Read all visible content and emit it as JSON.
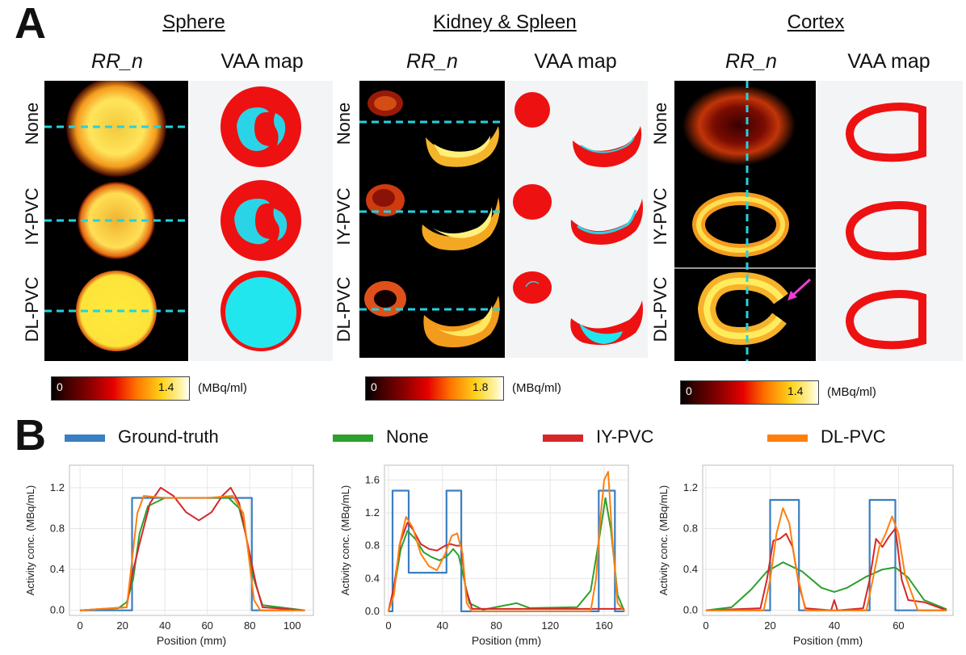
{
  "panels": {
    "a_label": "A",
    "b_label": "B"
  },
  "columns": [
    {
      "title": "Sphere",
      "sub_left": "RR_n",
      "sub_right": "VAA map"
    },
    {
      "title": "Kidney & Spleen",
      "sub_left": "RR_n",
      "sub_right": "VAA map"
    },
    {
      "title": "Cortex",
      "sub_left": "RR_n",
      "sub_right": "VAA map"
    }
  ],
  "rows": [
    "None",
    "IY-PVC",
    "DL-PVC"
  ],
  "colorbars": [
    {
      "min": "0",
      "max": "1.4",
      "unit": "(MBq/ml)"
    },
    {
      "min": "0",
      "max": "1.8",
      "unit": "(MBq/ml)"
    },
    {
      "min": "0",
      "max": "1.4",
      "unit": "(MBq/ml)"
    }
  ],
  "legend": [
    {
      "name": "Ground-truth",
      "color": "#3a7fc1"
    },
    {
      "name": "None",
      "color": "#2ca02c"
    },
    {
      "name": "IY-PVC",
      "color": "#d62728"
    },
    {
      "name": "DL-PVC",
      "color": "#ff7f0e"
    }
  ],
  "chart_data": [
    {
      "type": "line",
      "xlabel": "Position (mm)",
      "ylabel": "Activity conc. (MBq/mL)",
      "xlim": [
        -5,
        110
      ],
      "ylim": [
        -0.05,
        1.42
      ],
      "xticks": [
        0,
        20,
        40,
        60,
        80,
        100
      ],
      "yticks": [
        0.0,
        0.4,
        0.8,
        1.2
      ],
      "ytick_labels": [
        "0.0",
        "0.4",
        "0.8",
        "1.2"
      ],
      "grid": true,
      "series": [
        {
          "name": "Ground-truth",
          "x": [
            0,
            24.5,
            24.5,
            81,
            81,
            106
          ],
          "y": [
            0,
            0,
            1.1,
            1.1,
            0,
            0
          ]
        },
        {
          "name": "None",
          "x": [
            0,
            18,
            22,
            25,
            28,
            32,
            40,
            55,
            70,
            75,
            78,
            82,
            86,
            106
          ],
          "y": [
            0,
            0.02,
            0.08,
            0.3,
            0.75,
            1.02,
            1.1,
            1.1,
            1.1,
            1.0,
            0.75,
            0.3,
            0.05,
            0
          ]
        },
        {
          "name": "IY-PVC",
          "x": [
            0,
            22,
            24,
            28,
            33,
            38,
            44,
            50,
            56,
            62,
            67,
            71,
            75,
            79,
            83,
            86,
            106
          ],
          "y": [
            0,
            0.03,
            0.3,
            0.65,
            1.05,
            1.2,
            1.12,
            0.96,
            0.88,
            0.96,
            1.12,
            1.2,
            1.05,
            0.65,
            0.25,
            0.03,
            0
          ]
        },
        {
          "name": "DL-PVC",
          "x": [
            0,
            22,
            24,
            27,
            30,
            40,
            60,
            72,
            77,
            80,
            82,
            85,
            106
          ],
          "y": [
            0,
            0.03,
            0.4,
            0.95,
            1.12,
            1.1,
            1.1,
            1.12,
            0.95,
            0.45,
            0.1,
            0,
            0
          ]
        }
      ]
    },
    {
      "type": "line",
      "xlabel": "Position (mm)",
      "ylabel": "Activity conc. (MBq/mL)",
      "xlim": [
        -3,
        178
      ],
      "ylim": [
        -0.05,
        1.78
      ],
      "xticks": [
        0,
        40,
        80,
        120,
        160
      ],
      "yticks": [
        0.0,
        0.4,
        0.8,
        1.2,
        1.6
      ],
      "ytick_labels": [
        "0.0",
        "0.4",
        "0.8",
        "1.2",
        "1.6"
      ],
      "grid": true,
      "series": [
        {
          "name": "Ground-truth",
          "x": [
            0,
            3,
            3,
            15,
            15,
            43,
            43,
            54,
            54,
            156,
            156,
            168,
            168,
            175
          ],
          "y": [
            0,
            0,
            1.47,
            1.47,
            0.47,
            0.47,
            1.47,
            1.47,
            0,
            0,
            1.47,
            1.47,
            0,
            0
          ]
        },
        {
          "name": "None",
          "x": [
            0,
            4,
            9,
            14,
            20,
            26,
            32,
            38,
            44,
            48,
            52,
            56,
            60,
            70,
            95,
            105,
            140,
            150,
            156,
            161,
            165,
            170,
            175
          ],
          "y": [
            0,
            0.25,
            0.75,
            0.98,
            0.88,
            0.72,
            0.66,
            0.62,
            0.68,
            0.76,
            0.68,
            0.4,
            0.1,
            0.02,
            0.1,
            0.04,
            0.05,
            0.25,
            0.85,
            1.38,
            1.0,
            0.2,
            0
          ]
        },
        {
          "name": "IY-PVC",
          "x": [
            0,
            4,
            9,
            14,
            18,
            24,
            30,
            36,
            42,
            46,
            50,
            54,
            57,
            62,
            175
          ],
          "y": [
            0,
            0.3,
            0.85,
            1.08,
            1.0,
            0.82,
            0.76,
            0.74,
            0.8,
            0.82,
            0.8,
            0.8,
            0.3,
            0.03,
            0.03
          ]
        },
        {
          "name": "DL-PVC",
          "x": [
            0,
            4,
            8,
            13,
            18,
            24,
            30,
            36,
            42,
            47,
            51,
            55,
            58,
            62,
            150,
            154,
            157,
            160,
            163,
            166,
            170,
            175
          ],
          "y": [
            0,
            0.2,
            0.8,
            1.15,
            1.02,
            0.7,
            0.55,
            0.5,
            0.7,
            0.92,
            0.95,
            0.7,
            0.1,
            0,
            0,
            0.4,
            1.1,
            1.6,
            1.7,
            0.9,
            0.1,
            0
          ]
        }
      ]
    },
    {
      "type": "line",
      "xlabel": "Position (mm)",
      "ylabel": "Activity conc. (MBq/mL)",
      "xlim": [
        -1,
        77
      ],
      "ylim": [
        -0.05,
        1.42
      ],
      "xticks": [
        0,
        20,
        40,
        60
      ],
      "yticks": [
        0.0,
        0.4,
        0.8,
        1.2
      ],
      "ytick_labels": [
        "0.0",
        "0.4",
        "0.8",
        "1.2"
      ],
      "grid": true,
      "series": [
        {
          "name": "Ground-truth",
          "x": [
            0,
            20,
            20,
            29,
            29,
            51,
            51,
            59,
            59,
            75
          ],
          "y": [
            0,
            0,
            1.08,
            1.08,
            0,
            0,
            1.08,
            1.08,
            0,
            0
          ]
        },
        {
          "name": "None",
          "x": [
            0,
            8,
            14,
            19,
            24,
            30,
            36,
            40,
            44,
            50,
            55,
            59,
            63,
            68,
            75
          ],
          "y": [
            0,
            0.03,
            0.2,
            0.38,
            0.47,
            0.38,
            0.22,
            0.18,
            0.22,
            0.33,
            0.4,
            0.42,
            0.32,
            0.1,
            0.01
          ]
        },
        {
          "name": "IY-PVC",
          "x": [
            0,
            17,
            19,
            21,
            23,
            25,
            27,
            29,
            31,
            39,
            40,
            41,
            49,
            51,
            53,
            55,
            57,
            59,
            61,
            63,
            68,
            75
          ],
          "y": [
            0,
            0.02,
            0.3,
            0.68,
            0.7,
            0.75,
            0.62,
            0.25,
            0.02,
            0,
            0.1,
            0,
            0.02,
            0.3,
            0.7,
            0.62,
            0.72,
            0.8,
            0.3,
            0.1,
            0.08,
            0
          ]
        },
        {
          "name": "DL-PVC",
          "x": [
            0,
            18,
            20,
            22,
            24,
            26,
            28,
            31,
            50,
            52,
            54,
            56,
            58,
            60,
            62,
            66,
            75
          ],
          "y": [
            0,
            0,
            0.3,
            0.75,
            1.0,
            0.85,
            0.42,
            0,
            0,
            0.3,
            0.62,
            0.75,
            0.92,
            0.75,
            0.35,
            0,
            0
          ]
        }
      ]
    }
  ]
}
